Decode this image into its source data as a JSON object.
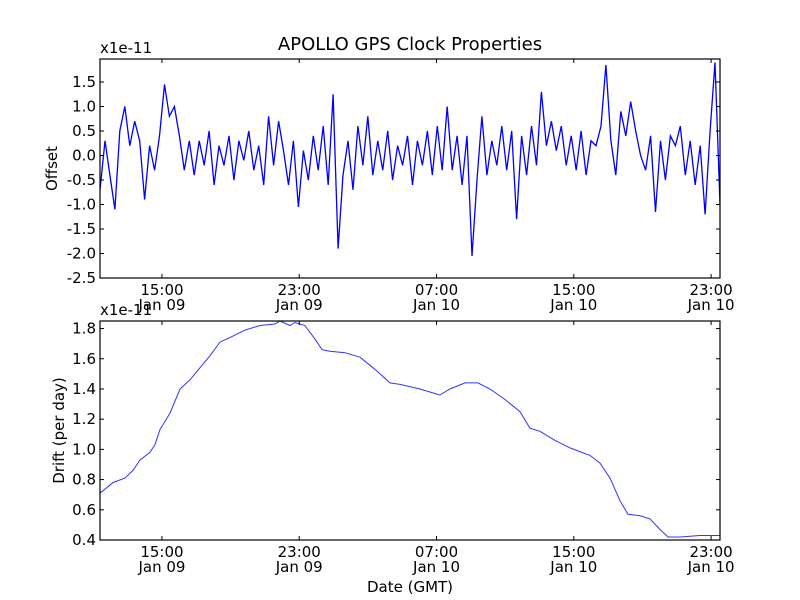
{
  "title": "APOLLO GPS Clock Properties",
  "chart_data": [
    {
      "type": "line",
      "name": "offset",
      "title": "APOLLO GPS Clock Properties",
      "xlabel": "",
      "ylabel": "Offset",
      "scale_label": "x1e-11",
      "x_units": "hours since Jan 09 00:00 GMT",
      "xlim": [
        11.39,
        47.52
      ],
      "ylim": [
        -2.5,
        1.97
      ],
      "yticks": [
        -2.5,
        -2.0,
        -1.5,
        -1.0,
        -0.5,
        0.0,
        0.5,
        1.0,
        1.5
      ],
      "ytick_labels": [
        "-2.5",
        "-2.0",
        "-1.5",
        "-1.0",
        "-0.5",
        "0.0",
        "0.5",
        "1.0",
        "1.5"
      ],
      "xticks": [
        15,
        23,
        31,
        39,
        47
      ],
      "xtick_labels": [
        [
          "15:00",
          "Jan 09"
        ],
        [
          "23:00",
          "Jan 09"
        ],
        [
          "07:00",
          "Jan 10"
        ],
        [
          "15:00",
          "Jan 10"
        ],
        [
          "23:00",
          "Jan 10"
        ]
      ],
      "color": "#0000ff",
      "series": [
        {
          "name": "Offset",
          "values_evenly_spaced": [
            -0.7,
            0.3,
            -0.4,
            -1.1,
            0.5,
            1.0,
            0.2,
            0.7,
            0.3,
            -0.9,
            0.2,
            -0.3,
            0.4,
            1.45,
            0.8,
            1.0,
            0.4,
            -0.3,
            0.3,
            -0.4,
            0.3,
            -0.2,
            0.5,
            -0.6,
            0.2,
            -0.2,
            0.4,
            -0.5,
            0.3,
            -0.1,
            0.5,
            -0.3,
            0.2,
            -0.6,
            0.8,
            -0.2,
            0.7,
            0.1,
            -0.6,
            0.3,
            -1.05,
            0.1,
            -0.5,
            0.4,
            -0.3,
            0.6,
            -0.6,
            1.25,
            -1.9,
            -0.4,
            0.3,
            -0.7,
            0.6,
            -0.2,
            0.8,
            -0.4,
            0.3,
            -0.3,
            0.5,
            -0.5,
            0.2,
            -0.2,
            0.4,
            -0.6,
            0.3,
            -0.2,
            0.5,
            -0.4,
            0.6,
            -0.3,
            1.0,
            -0.3,
            0.4,
            -0.6,
            0.4,
            -2.05,
            -0.5,
            0.8,
            -0.4,
            0.3,
            -0.2,
            0.6,
            -0.3,
            0.5,
            -1.3,
            0.4,
            -0.4,
            0.6,
            -0.2,
            1.3,
            0.2,
            0.7,
            0.1,
            0.6,
            -0.2,
            0.4,
            -0.3,
            0.5,
            -0.4,
            0.3,
            0.2,
            0.6,
            1.85,
            0.3,
            -0.4,
            0.9,
            0.4,
            1.1,
            0.5,
            0.0,
            -0.3,
            0.4,
            -1.15,
            0.3,
            -0.5,
            0.4,
            0.2,
            0.6,
            -0.4,
            0.3,
            -0.6,
            0.2,
            -1.2,
            0.5,
            1.9,
            -1.0
          ]
        }
      ]
    },
    {
      "type": "line",
      "name": "drift",
      "title": "",
      "xlabel": "Date (GMT)",
      "ylabel": "Drift (per day)",
      "scale_label": "x1e-11",
      "x_units": "hours since Jan 09 00:00 GMT",
      "xlim": [
        11.39,
        47.52
      ],
      "ylim": [
        0.4,
        1.85
      ],
      "yticks": [
        0.4,
        0.6,
        0.8,
        1.0,
        1.2,
        1.4,
        1.6,
        1.8
      ],
      "ytick_labels": [
        "0.4",
        "0.6",
        "0.8",
        "1.0",
        "1.2",
        "1.4",
        "1.6",
        "1.8"
      ],
      "xticks": [
        15,
        23,
        31,
        39,
        47
      ],
      "xtick_labels": [
        [
          "15:00",
          "Jan 09"
        ],
        [
          "23:00",
          "Jan 09"
        ],
        [
          "07:00",
          "Jan 10"
        ],
        [
          "15:00",
          "Jan 10"
        ],
        [
          "23:00",
          "Jan 10"
        ]
      ],
      "color": "#3333ff",
      "series": [
        {
          "name": "Drift",
          "x": [
            11.39,
            12.14,
            12.84,
            13.31,
            13.72,
            14.3,
            14.59,
            14.88,
            15.47,
            16.05,
            16.63,
            17.21,
            17.8,
            18.38,
            18.96,
            19.84,
            20.71,
            21.59,
            21.88,
            22.46,
            22.75,
            23.33,
            23.92,
            24.33,
            24.79,
            25.66,
            26.54,
            27.41,
            28.29,
            28.87,
            30.03,
            31.2,
            31.78,
            32.66,
            33.41,
            34.11,
            34.99,
            35.86,
            36.45,
            37.03,
            37.9,
            38.78,
            39.94,
            40.52,
            41.11,
            41.69,
            42.16,
            42.86,
            43.44,
            44.02,
            44.49,
            45.19,
            46.35,
            47.52
          ],
          "y": [
            0.71,
            0.78,
            0.81,
            0.86,
            0.93,
            0.98,
            1.03,
            1.13,
            1.24,
            1.4,
            1.46,
            1.54,
            1.62,
            1.71,
            1.74,
            1.79,
            1.82,
            1.83,
            1.85,
            1.82,
            1.84,
            1.82,
            1.73,
            1.66,
            1.65,
            1.64,
            1.61,
            1.53,
            1.44,
            1.43,
            1.4,
            1.36,
            1.4,
            1.44,
            1.44,
            1.4,
            1.33,
            1.25,
            1.14,
            1.12,
            1.06,
            1.01,
            0.96,
            0.91,
            0.81,
            0.66,
            0.57,
            0.56,
            0.54,
            0.47,
            0.42,
            0.42,
            0.43,
            0.43
          ]
        }
      ]
    }
  ]
}
